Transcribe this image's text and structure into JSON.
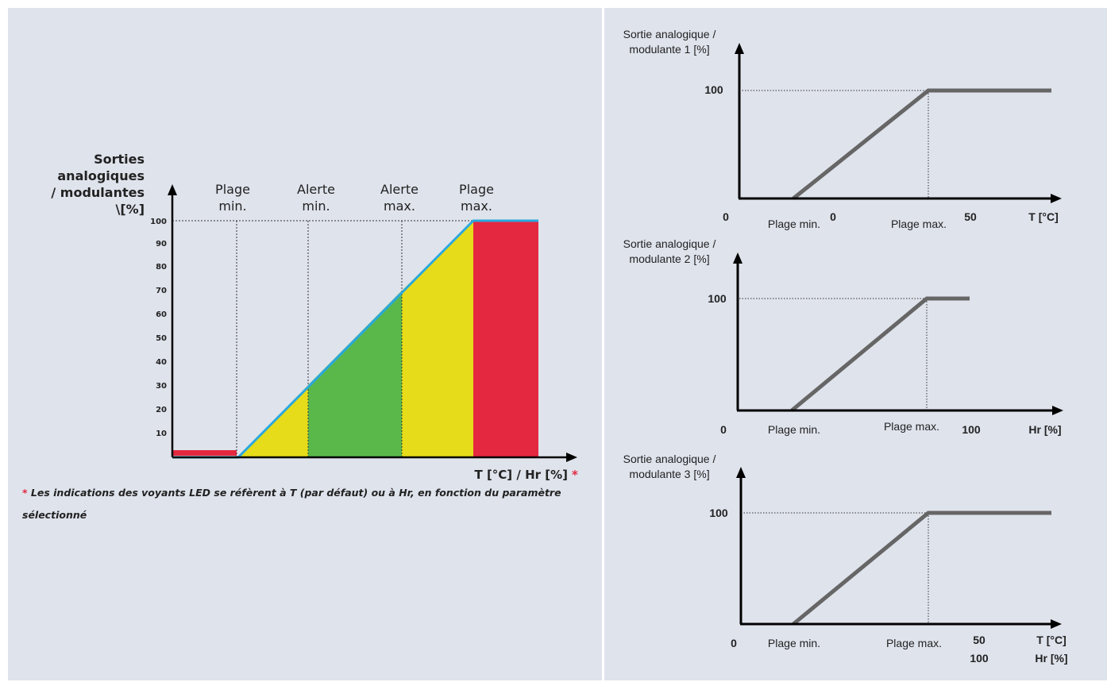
{
  "main": {
    "y_title_lines": [
      "Sorties",
      "analogiques",
      "/ modulantes",
      "\\[%]"
    ],
    "y_ticks": [
      "10",
      "20",
      "30",
      "40",
      "50",
      "60",
      "70",
      "80",
      "90",
      "100"
    ],
    "zones": [
      {
        "lines": [
          "Plage",
          "min."
        ]
      },
      {
        "lines": [
          "Alerte",
          "min."
        ]
      },
      {
        "lines": [
          "Alerte",
          "max."
        ]
      },
      {
        "lines": [
          "Plage",
          "max."
        ]
      }
    ],
    "x_title": "T [°C] / Hr [%]",
    "asterisk": "*",
    "zone_colors": {
      "red": "#e3283f",
      "yellow": "#e6dc19",
      "green": "#5ab84a",
      "line": "#2aa8df"
    }
  },
  "footnote": {
    "star": "*",
    "line1": "Les indications des voyants LED se réfèrent à T (par défaut) ou à Hr, en fonction du paramètre",
    "line2": "sélectionné"
  },
  "outputs": [
    {
      "ylabel": [
        "Sortie analogique /",
        "modulante 1 [%]"
      ],
      "y100": "100",
      "origin": "0",
      "plage_min": "Plage min.",
      "plage_max": "Plage max.",
      "scale1": "0",
      "scale2": "50",
      "unit": [
        "T [°C]"
      ]
    },
    {
      "ylabel": [
        "Sortie analogique /",
        "modulante 2 [%]"
      ],
      "y100": "100",
      "origin": "0",
      "plage_min": "Plage min.",
      "plage_max": "Plage max.",
      "scale2": "100",
      "unit": [
        "Hr [%]"
      ]
    },
    {
      "ylabel": [
        "Sortie analogique /",
        "modulante 3 [%]"
      ],
      "y100": "100",
      "origin": "0",
      "plage_min": "Plage min.",
      "plage_max": "Plage max.",
      "scale2_lines": [
        "50",
        "100"
      ],
      "unit": [
        "T [°C]",
        "Hr [%]"
      ]
    }
  ],
  "colors": {
    "panel": "#dfe3ec",
    "axis": "#000000",
    "ramp": "#666666"
  }
}
